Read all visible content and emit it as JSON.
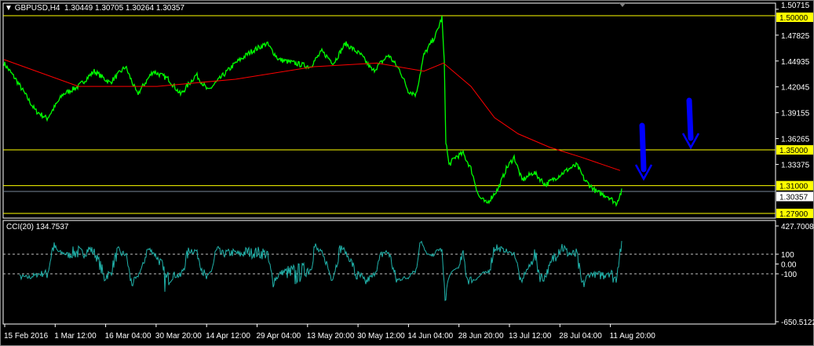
{
  "header": {
    "symbol": "GBPUSD,H4",
    "open": "1.30449",
    "high": "1.30705",
    "low": "1.30264",
    "close": "1.30357"
  },
  "indicator": {
    "label": "CCI(20) 134.7537"
  },
  "colors": {
    "price": "#00ff00",
    "ma": "#ff0000",
    "cci": "#20b2aa",
    "hline": "#ffff00",
    "arrow": "#0000ff",
    "background": "#000000"
  },
  "chart_data": [
    {
      "type": "line",
      "pane": "price",
      "ylim": [
        1.279,
        1.50715
      ],
      "y_ticks": [
        "1.50715",
        "1.47825",
        "1.44935",
        "1.42045",
        "1.39155",
        "1.36265",
        "1.33375"
      ],
      "horizontal_levels": [
        {
          "value": 1.5,
          "label": "1.50000"
        },
        {
          "value": 1.35,
          "label": "1.35000"
        },
        {
          "value": 1.31,
          "label": "1.31000"
        },
        {
          "value": 1.279,
          "label": "1.27900"
        }
      ],
      "current_price": {
        "value": 1.30357,
        "label": "1.30357"
      },
      "x_ticks": [
        "15 Feb 2016",
        "1 Mar 12:00",
        "16 Mar 04:00",
        "30 Mar 20:00",
        "14 Apr 12:00",
        "29 Apr 04:00",
        "13 May 20:00",
        "30 May 12:00",
        "14 Jun 04:00",
        "28 Jun 20:00",
        "13 Jul 12:00",
        "28 Jul 04:00",
        "11 Aug 20:00"
      ],
      "series": [
        {
          "kind": "price",
          "bars": [
            0,
            15,
            40,
            55,
            75,
            95,
            115,
            135,
            155,
            170,
            190,
            210,
            225,
            245,
            260,
            280,
            295,
            315,
            335,
            350,
            370,
            390,
            405,
            420,
            435,
            455,
            470,
            490,
            505,
            515,
            525,
            535,
            550,
            558,
            561,
            563,
            567,
            575,
            585,
            595,
            605,
            615,
            630,
            640,
            650,
            660,
            675,
            690,
            705,
            720,
            730,
            740,
            755,
            770,
            780,
            787
          ],
          "values": [
            1.447,
            1.429,
            1.394,
            1.385,
            1.412,
            1.421,
            1.438,
            1.425,
            1.443,
            1.412,
            1.438,
            1.429,
            1.412,
            1.434,
            1.416,
            1.434,
            1.447,
            1.46,
            1.469,
            1.451,
            1.447,
            1.443,
            1.46,
            1.447,
            1.469,
            1.456,
            1.438,
            1.456,
            1.438,
            1.416,
            1.412,
            1.456,
            1.478,
            1.498,
            1.447,
            1.36,
            1.333,
            1.342,
            1.346,
            1.329,
            1.298,
            1.29,
            1.307,
            1.329,
            1.342,
            1.316,
            1.325,
            1.311,
            1.32,
            1.329,
            1.333,
            1.316,
            1.303,
            1.298,
            1.29,
            1.304
          ]
        },
        {
          "kind": "moving-average",
          "bars": [
            0,
            95,
            195,
            295,
            395,
            475,
            535,
            560,
            595,
            625,
            655,
            695,
            735,
            785
          ],
          "values": [
            1.451,
            1.421,
            1.421,
            1.429,
            1.443,
            1.447,
            1.438,
            1.447,
            1.421,
            1.386,
            1.368,
            1.353,
            1.342,
            1.327
          ]
        }
      ]
    },
    {
      "type": "line",
      "pane": "indicator",
      "name": "CCI(20)",
      "ylim": [
        -650.5122,
        427.7008
      ],
      "y_ticks": [
        "427.7008",
        "100",
        "0.00",
        "-100",
        "-650.5122"
      ],
      "levels": [
        100,
        -100
      ],
      "last_value": 134.7537
    }
  ],
  "annotations": {
    "arrows": [
      {
        "direction": "down"
      },
      {
        "direction": "down"
      }
    ]
  }
}
